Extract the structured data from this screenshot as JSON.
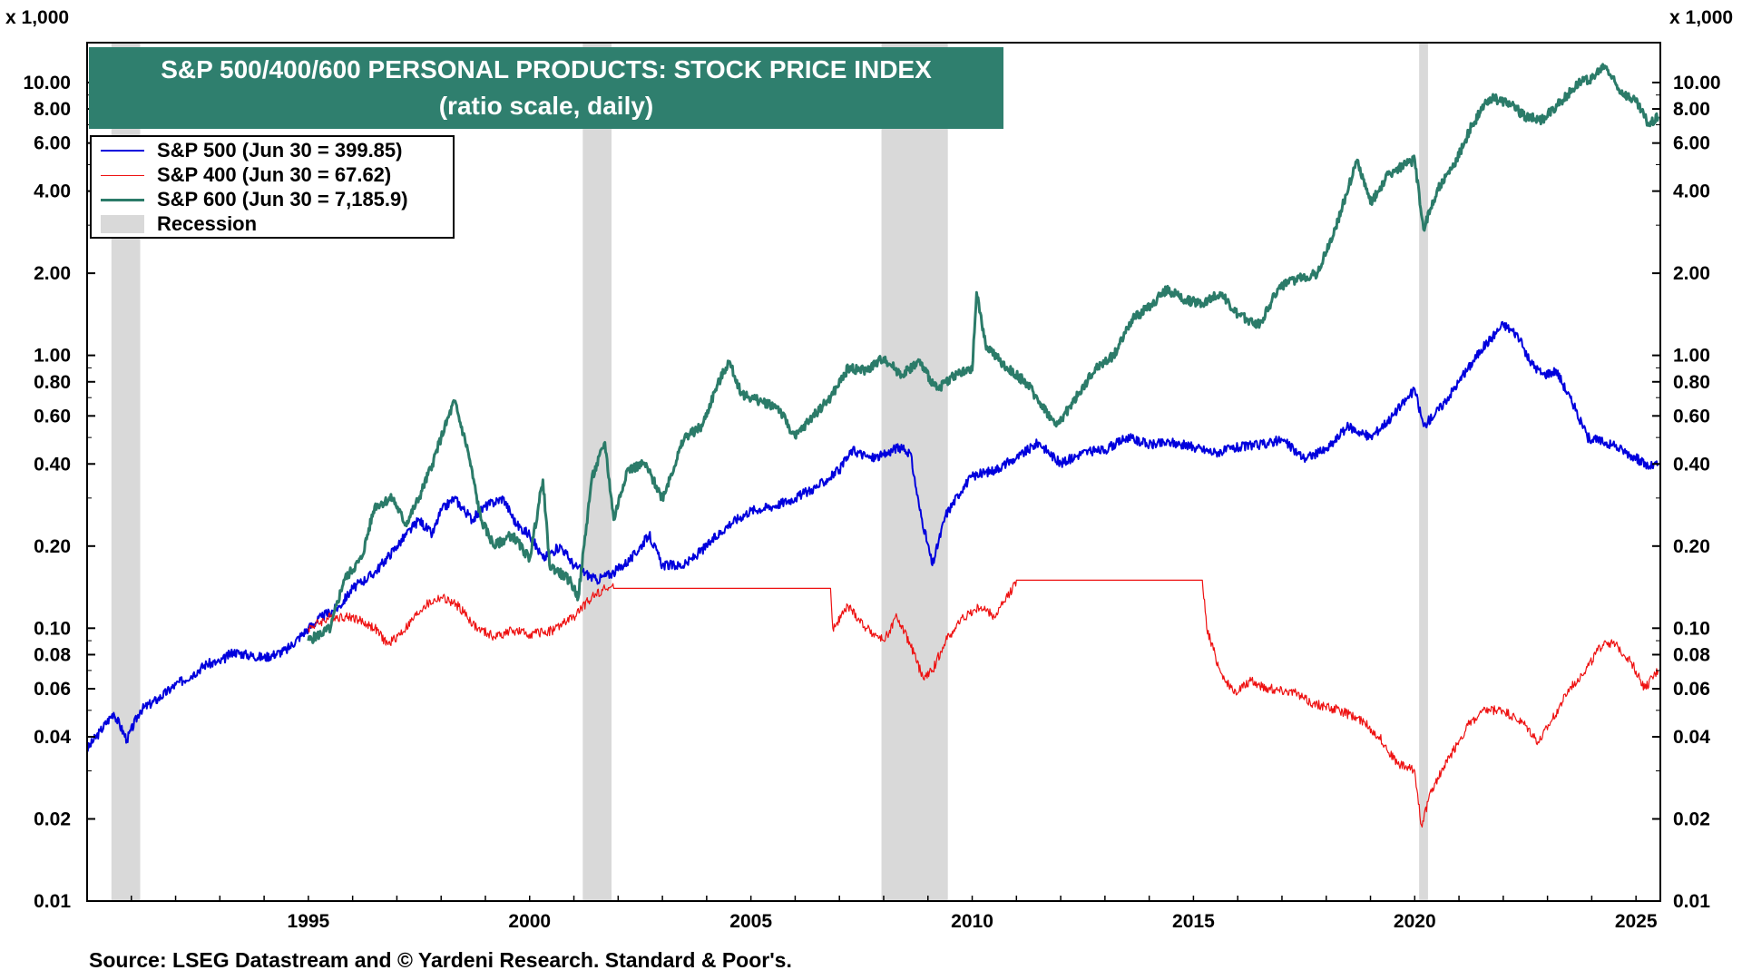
{
  "chart_data": {
    "type": "line",
    "title": "S&P 500/400/600 PERSONAL PRODUCTS: STOCK PRICE INDEX",
    "subtitle": "(ratio scale, daily)",
    "y_multiplier_label_left": "x 1,000",
    "y_multiplier_label_right": "x 1,000",
    "yscale": "log",
    "ylim": [
      0.01,
      14
    ],
    "xlim": [
      1990.0,
      2025.55
    ],
    "y_ticks": [
      "10.00",
      "8.00",
      "6.00",
      "4.00",
      "2.00",
      "1.00",
      "0.80",
      "0.60",
      "0.40",
      "0.20",
      "0.10",
      "0.08",
      "0.06",
      "0.04",
      "0.02",
      "0.01"
    ],
    "x_ticks": [
      "1995",
      "2000",
      "2005",
      "2010",
      "2015",
      "2020",
      "2025"
    ],
    "grid": false,
    "legend_placement": "top-left",
    "source": "Source: LSEG Datastream and © Yardeni Research. Standard & Poor's.",
    "recessions": [
      {
        "start": 1990.55,
        "end": 1991.2
      },
      {
        "start": 2001.2,
        "end": 2001.85
      },
      {
        "start": 2007.95,
        "end": 2009.45
      },
      {
        "start": 2020.1,
        "end": 2020.3
      }
    ],
    "recession_label": "Recession",
    "series": [
      {
        "name": "S&P 500 (Jun 30 = 399.85)",
        "color": "#0000dd",
        "points": [
          [
            1990.0,
            0.036
          ],
          [
            1990.3,
            0.042
          ],
          [
            1990.6,
            0.049
          ],
          [
            1990.9,
            0.039
          ],
          [
            1991.2,
            0.05
          ],
          [
            1991.6,
            0.055
          ],
          [
            1992.0,
            0.062
          ],
          [
            1992.4,
            0.068
          ],
          [
            1992.7,
            0.074
          ],
          [
            1993.0,
            0.075
          ],
          [
            1993.3,
            0.082
          ],
          [
            1993.6,
            0.08
          ],
          [
            1994.0,
            0.078
          ],
          [
            1994.5,
            0.083
          ],
          [
            1995.0,
            0.1
          ],
          [
            1995.3,
            0.11
          ],
          [
            1995.7,
            0.12
          ],
          [
            1996.0,
            0.14
          ],
          [
            1996.5,
            0.16
          ],
          [
            1997.0,
            0.2
          ],
          [
            1997.5,
            0.25
          ],
          [
            1997.8,
            0.22
          ],
          [
            1998.0,
            0.27
          ],
          [
            1998.3,
            0.3
          ],
          [
            1998.7,
            0.25
          ],
          [
            1999.0,
            0.28
          ],
          [
            1999.4,
            0.3
          ],
          [
            1999.7,
            0.24
          ],
          [
            2000.0,
            0.22
          ],
          [
            2000.3,
            0.18
          ],
          [
            2000.7,
            0.2
          ],
          [
            2001.0,
            0.17
          ],
          [
            2001.5,
            0.15
          ],
          [
            2001.9,
            0.16
          ],
          [
            2002.3,
            0.18
          ],
          [
            2002.7,
            0.22
          ],
          [
            2003.0,
            0.17
          ],
          [
            2003.5,
            0.17
          ],
          [
            2004.0,
            0.2
          ],
          [
            2004.5,
            0.24
          ],
          [
            2005.0,
            0.27
          ],
          [
            2005.5,
            0.28
          ],
          [
            2006.0,
            0.3
          ],
          [
            2006.5,
            0.33
          ],
          [
            2007.0,
            0.38
          ],
          [
            2007.3,
            0.45
          ],
          [
            2007.7,
            0.42
          ],
          [
            2008.0,
            0.43
          ],
          [
            2008.3,
            0.46
          ],
          [
            2008.6,
            0.44
          ],
          [
            2008.8,
            0.28
          ],
          [
            2009.1,
            0.17
          ],
          [
            2009.4,
            0.26
          ],
          [
            2009.8,
            0.33
          ],
          [
            2010.0,
            0.36
          ],
          [
            2010.5,
            0.38
          ],
          [
            2011.0,
            0.42
          ],
          [
            2011.5,
            0.48
          ],
          [
            2012.0,
            0.4
          ],
          [
            2012.5,
            0.44
          ],
          [
            2013.0,
            0.45
          ],
          [
            2013.5,
            0.5
          ],
          [
            2014.0,
            0.47
          ],
          [
            2014.5,
            0.48
          ],
          [
            2015.0,
            0.46
          ],
          [
            2015.5,
            0.44
          ],
          [
            2016.0,
            0.46
          ],
          [
            2016.5,
            0.47
          ],
          [
            2017.0,
            0.49
          ],
          [
            2017.5,
            0.42
          ],
          [
            2018.0,
            0.45
          ],
          [
            2018.5,
            0.55
          ],
          [
            2019.0,
            0.5
          ],
          [
            2019.5,
            0.6
          ],
          [
            2020.0,
            0.75
          ],
          [
            2020.2,
            0.55
          ],
          [
            2020.6,
            0.65
          ],
          [
            2021.0,
            0.8
          ],
          [
            2021.5,
            1.05
          ],
          [
            2022.0,
            1.3
          ],
          [
            2022.3,
            1.2
          ],
          [
            2022.6,
            0.95
          ],
          [
            2022.9,
            0.85
          ],
          [
            2023.2,
            0.88
          ],
          [
            2023.6,
            0.65
          ],
          [
            2023.9,
            0.5
          ],
          [
            2024.3,
            0.48
          ],
          [
            2024.7,
            0.45
          ],
          [
            2025.0,
            0.42
          ],
          [
            2025.3,
            0.39
          ],
          [
            2025.5,
            0.4
          ]
        ]
      },
      {
        "name": "S&P 400 (Jun 30 = 67.62)",
        "color": "#ee1111",
        "points": [
          [
            1995.0,
            0.1
          ],
          [
            1995.5,
            0.11
          ],
          [
            1996.0,
            0.11
          ],
          [
            1996.5,
            0.1
          ],
          [
            1996.8,
            0.087
          ],
          [
            1997.2,
            0.1
          ],
          [
            1997.6,
            0.12
          ],
          [
            1998.0,
            0.13
          ],
          [
            1998.4,
            0.12
          ],
          [
            1998.8,
            0.1
          ],
          [
            1999.2,
            0.093
          ],
          [
            1999.6,
            0.098
          ],
          [
            2000.0,
            0.095
          ],
          [
            2000.5,
            0.098
          ],
          [
            2001.0,
            0.11
          ],
          [
            2001.4,
            0.13
          ],
          [
            2001.7,
            0.14
          ],
          [
            2001.9,
            0.14
          ],
          [
            2006.8,
            0.14
          ],
          [
            2006.85,
            0.1
          ],
          [
            2007.2,
            0.12
          ],
          [
            2007.6,
            0.1
          ],
          [
            2008.0,
            0.09
          ],
          [
            2008.3,
            0.11
          ],
          [
            2008.6,
            0.087
          ],
          [
            2008.9,
            0.065
          ],
          [
            2009.1,
            0.07
          ],
          [
            2009.4,
            0.09
          ],
          [
            2009.8,
            0.11
          ],
          [
            2010.2,
            0.12
          ],
          [
            2010.5,
            0.11
          ],
          [
            2010.8,
            0.13
          ],
          [
            2011.0,
            0.15
          ],
          [
            2015.2,
            0.15
          ],
          [
            2015.3,
            0.1
          ],
          [
            2015.6,
            0.07
          ],
          [
            2015.9,
            0.058
          ],
          [
            2016.3,
            0.064
          ],
          [
            2016.7,
            0.06
          ],
          [
            2017.2,
            0.059
          ],
          [
            2017.7,
            0.053
          ],
          [
            2018.3,
            0.05
          ],
          [
            2018.8,
            0.046
          ],
          [
            2019.2,
            0.04
          ],
          [
            2019.6,
            0.032
          ],
          [
            2020.0,
            0.03
          ],
          [
            2020.15,
            0.019
          ],
          [
            2020.4,
            0.026
          ],
          [
            2020.8,
            0.034
          ],
          [
            2021.2,
            0.044
          ],
          [
            2021.6,
            0.05
          ],
          [
            2022.0,
            0.05
          ],
          [
            2022.5,
            0.044
          ],
          [
            2022.8,
            0.038
          ],
          [
            2023.1,
            0.046
          ],
          [
            2023.5,
            0.06
          ],
          [
            2023.9,
            0.072
          ],
          [
            2024.3,
            0.09
          ],
          [
            2024.6,
            0.085
          ],
          [
            2024.9,
            0.075
          ],
          [
            2025.2,
            0.06
          ],
          [
            2025.5,
            0.07
          ]
        ]
      },
      {
        "name": "S&P 600 (Jun 30 = 7,185.9)",
        "color": "#2b7b69",
        "points": [
          [
            1995.0,
            0.09
          ],
          [
            1995.5,
            0.1
          ],
          [
            1995.8,
            0.15
          ],
          [
            1996.2,
            0.18
          ],
          [
            1996.5,
            0.28
          ],
          [
            1996.9,
            0.3
          ],
          [
            1997.2,
            0.24
          ],
          [
            1997.5,
            0.3
          ],
          [
            1997.8,
            0.4
          ],
          [
            1998.0,
            0.5
          ],
          [
            1998.3,
            0.68
          ],
          [
            1998.6,
            0.45
          ],
          [
            1998.9,
            0.25
          ],
          [
            1999.2,
            0.2
          ],
          [
            1999.6,
            0.22
          ],
          [
            2000.0,
            0.18
          ],
          [
            2000.3,
            0.35
          ],
          [
            2000.45,
            0.17
          ],
          [
            2000.9,
            0.15
          ],
          [
            2001.1,
            0.13
          ],
          [
            2001.4,
            0.35
          ],
          [
            2001.7,
            0.48
          ],
          [
            2001.9,
            0.25
          ],
          [
            2002.2,
            0.38
          ],
          [
            2002.6,
            0.4
          ],
          [
            2003.0,
            0.3
          ],
          [
            2003.5,
            0.5
          ],
          [
            2003.9,
            0.55
          ],
          [
            2004.2,
            0.75
          ],
          [
            2004.5,
            0.95
          ],
          [
            2004.8,
            0.72
          ],
          [
            2005.2,
            0.68
          ],
          [
            2005.6,
            0.65
          ],
          [
            2006.0,
            0.5
          ],
          [
            2006.4,
            0.6
          ],
          [
            2006.8,
            0.7
          ],
          [
            2007.2,
            0.9
          ],
          [
            2007.6,
            0.88
          ],
          [
            2008.0,
            0.98
          ],
          [
            2008.4,
            0.85
          ],
          [
            2008.8,
            0.95
          ],
          [
            2009.2,
            0.75
          ],
          [
            2009.6,
            0.85
          ],
          [
            2010.0,
            0.88
          ],
          [
            2010.1,
            1.7
          ],
          [
            2010.3,
            1.1
          ],
          [
            2010.7,
            0.92
          ],
          [
            2011.2,
            0.8
          ],
          [
            2011.6,
            0.65
          ],
          [
            2011.9,
            0.55
          ],
          [
            2012.4,
            0.72
          ],
          [
            2012.8,
            0.9
          ],
          [
            2013.2,
            1.0
          ],
          [
            2013.6,
            1.35
          ],
          [
            2014.0,
            1.5
          ],
          [
            2014.4,
            1.75
          ],
          [
            2014.8,
            1.6
          ],
          [
            2015.2,
            1.55
          ],
          [
            2015.6,
            1.7
          ],
          [
            2016.0,
            1.4
          ],
          [
            2016.5,
            1.3
          ],
          [
            2016.9,
            1.75
          ],
          [
            2017.3,
            1.9
          ],
          [
            2017.8,
            2.0
          ],
          [
            2018.2,
            2.9
          ],
          [
            2018.7,
            5.2
          ],
          [
            2019.0,
            3.6
          ],
          [
            2019.4,
            4.6
          ],
          [
            2019.8,
            5.0
          ],
          [
            2020.0,
            5.2
          ],
          [
            2020.2,
            2.9
          ],
          [
            2020.5,
            4.0
          ],
          [
            2020.9,
            5.0
          ],
          [
            2021.3,
            7.0
          ],
          [
            2021.7,
            8.8
          ],
          [
            2022.1,
            8.5
          ],
          [
            2022.5,
            7.5
          ],
          [
            2022.9,
            7.3
          ],
          [
            2023.3,
            8.5
          ],
          [
            2023.7,
            10.0
          ],
          [
            2024.0,
            10.3
          ],
          [
            2024.3,
            11.5
          ],
          [
            2024.6,
            9.5
          ],
          [
            2025.0,
            8.5
          ],
          [
            2025.3,
            7.0
          ],
          [
            2025.5,
            7.5
          ]
        ]
      }
    ]
  }
}
